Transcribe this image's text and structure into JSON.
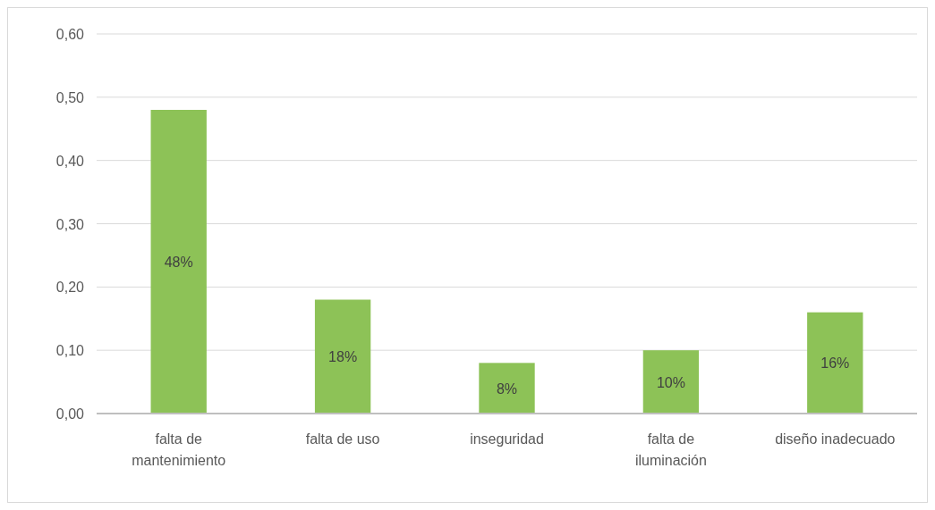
{
  "chart_data": {
    "type": "bar",
    "categories": [
      "falta de mantenimiento",
      "falta de uso",
      "inseguridad",
      "falta de iluminación",
      "diseño inadecuado"
    ],
    "values": [
      0.48,
      0.18,
      0.08,
      0.1,
      0.16
    ],
    "value_labels": [
      "48%",
      "18%",
      "8%",
      "10%",
      "16%"
    ],
    "color": "#8dc257",
    "ylim": [
      0,
      0.6
    ],
    "yticks": [
      {
        "value": 0,
        "label": "0,00"
      },
      {
        "value": 0.1,
        "label": "0,10"
      },
      {
        "value": 0.2,
        "label": "0,20"
      },
      {
        "value": 0.3,
        "label": "0,30"
      },
      {
        "value": 0.4,
        "label": "0,40"
      },
      {
        "value": 0.5,
        "label": "0,50"
      },
      {
        "value": 0.6,
        "label": "0,60"
      }
    ],
    "grid": "y"
  }
}
